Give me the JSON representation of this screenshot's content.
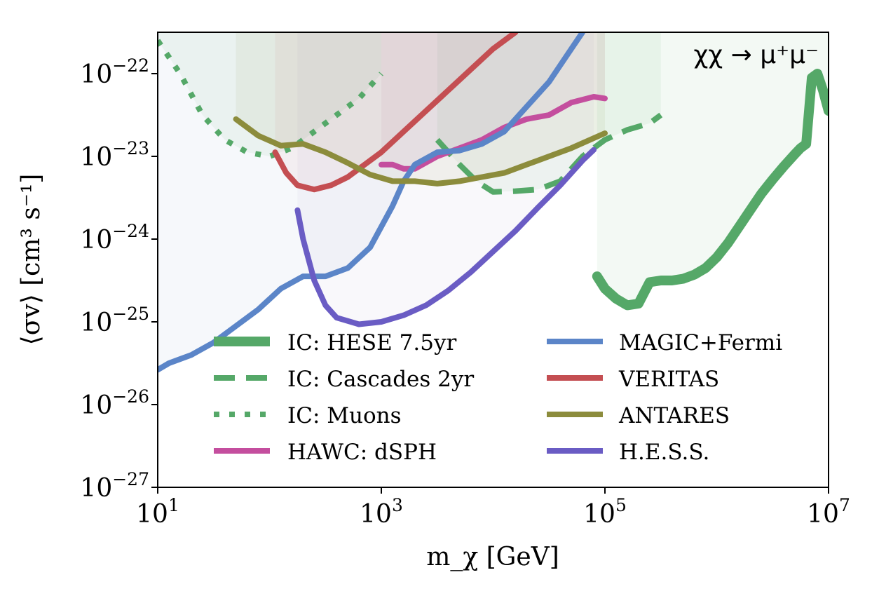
{
  "chart_data": {
    "type": "line",
    "title": "",
    "annotation": "χχ → μ⁺μ⁻",
    "xlabel": "m_χ [GeV]",
    "ylabel": "⟨σv⟩ [cm³ s⁻¹]",
    "xscale": "log",
    "yscale": "log",
    "xlim_log10": [
      1,
      7
    ],
    "ylim_log10": [
      -27,
      -21.5
    ],
    "x_ticks": [
      {
        "exp": 1,
        "base": "10",
        "sup": "1"
      },
      {
        "exp": 3,
        "base": "10",
        "sup": "3"
      },
      {
        "exp": 5,
        "base": "10",
        "sup": "5"
      },
      {
        "exp": 7,
        "base": "10",
        "sup": "7"
      }
    ],
    "y_ticks": [
      {
        "exp": -22,
        "base": "10",
        "sup": "−22"
      },
      {
        "exp": -23,
        "base": "10",
        "sup": "−23"
      },
      {
        "exp": -24,
        "base": "10",
        "sup": "−24"
      },
      {
        "exp": -25,
        "base": "10",
        "sup": "−25"
      },
      {
        "exp": -26,
        "base": "10",
        "sup": "−26"
      },
      {
        "exp": -27,
        "base": "10",
        "sup": "−27"
      }
    ],
    "legend_position": "lower-center",
    "series": [
      {
        "name": "IC: HESE 7.5yr",
        "color": "#55a868",
        "width": 14,
        "dash": "solid",
        "shade": true,
        "shade_color": "#55a868",
        "shade_opacity": 0.07,
        "points": [
          [
            4.93,
            -24.45
          ],
          [
            5.0,
            -24.6
          ],
          [
            5.1,
            -24.72
          ],
          [
            5.2,
            -24.8
          ],
          [
            5.3,
            -24.78
          ],
          [
            5.35,
            -24.65
          ],
          [
            5.4,
            -24.52
          ],
          [
            5.5,
            -24.5
          ],
          [
            5.6,
            -24.5
          ],
          [
            5.7,
            -24.48
          ],
          [
            5.8,
            -24.43
          ],
          [
            5.9,
            -24.35
          ],
          [
            6.0,
            -24.22
          ],
          [
            6.1,
            -24.05
          ],
          [
            6.2,
            -23.85
          ],
          [
            6.3,
            -23.65
          ],
          [
            6.4,
            -23.45
          ],
          [
            6.5,
            -23.28
          ],
          [
            6.6,
            -23.12
          ],
          [
            6.7,
            -22.97
          ],
          [
            6.75,
            -22.9
          ],
          [
            6.8,
            -22.85
          ],
          [
            6.85,
            -22.05
          ],
          [
            6.9,
            -22.0
          ],
          [
            6.95,
            -22.2
          ],
          [
            7.0,
            -22.45
          ]
        ]
      },
      {
        "name": "IC: Cascades 2yr",
        "color": "#55a868",
        "width": 8,
        "dash": "dashed",
        "shade": true,
        "shade_color": "#55a868",
        "shade_opacity": 0.07,
        "points": [
          [
            3.5,
            -22.8
          ],
          [
            3.7,
            -23.1
          ],
          [
            3.85,
            -23.3
          ],
          [
            4.0,
            -23.43
          ],
          [
            4.2,
            -23.42
          ],
          [
            4.4,
            -23.4
          ],
          [
            4.6,
            -23.3
          ],
          [
            4.8,
            -23.0
          ],
          [
            5.0,
            -22.8
          ],
          [
            5.2,
            -22.68
          ],
          [
            5.4,
            -22.6
          ],
          [
            5.5,
            -22.5
          ]
        ]
      },
      {
        "name": "IC: Muons",
        "color": "#55a868",
        "width": 8,
        "dash": "dotted",
        "shade": true,
        "shade_color": "#55a868",
        "shade_opacity": 0.07,
        "points": [
          [
            1.0,
            -21.6
          ],
          [
            1.2,
            -22.0
          ],
          [
            1.4,
            -22.5
          ],
          [
            1.6,
            -22.8
          ],
          [
            1.8,
            -22.95
          ],
          [
            2.0,
            -23.0
          ],
          [
            2.2,
            -22.9
          ],
          [
            2.4,
            -22.7
          ],
          [
            2.6,
            -22.5
          ],
          [
            2.8,
            -22.3
          ],
          [
            3.0,
            -22.0
          ]
        ]
      },
      {
        "name": "HAWC: dSPH",
        "color": "#c44e9e",
        "width": 8,
        "dash": "solid",
        "shade": true,
        "shade_color": "#c44e9e",
        "shade_opacity": 0.07,
        "points": [
          [
            3.0,
            -23.1
          ],
          [
            3.1,
            -23.1
          ],
          [
            3.2,
            -23.15
          ],
          [
            3.3,
            -23.15
          ],
          [
            3.5,
            -23.0
          ],
          [
            3.7,
            -22.9
          ],
          [
            3.9,
            -22.8
          ],
          [
            4.1,
            -22.65
          ],
          [
            4.3,
            -22.55
          ],
          [
            4.5,
            -22.5
          ],
          [
            4.7,
            -22.35
          ],
          [
            4.9,
            -22.28
          ],
          [
            5.0,
            -22.3
          ]
        ]
      },
      {
        "name": "MAGIC+Fermi",
        "color": "#5b85c8",
        "width": 8,
        "dash": "solid",
        "shade": true,
        "shade_color": "#4c72b0",
        "shade_opacity": 0.05,
        "points": [
          [
            1.0,
            -25.58
          ],
          [
            1.1,
            -25.5
          ],
          [
            1.3,
            -25.4
          ],
          [
            1.5,
            -25.25
          ],
          [
            1.7,
            -25.05
          ],
          [
            1.9,
            -24.85
          ],
          [
            2.1,
            -24.6
          ],
          [
            2.3,
            -24.45
          ],
          [
            2.5,
            -24.45
          ],
          [
            2.7,
            -24.35
          ],
          [
            2.9,
            -24.1
          ],
          [
            3.0,
            -23.85
          ],
          [
            3.1,
            -23.6
          ],
          [
            3.2,
            -23.3
          ],
          [
            3.3,
            -23.1
          ],
          [
            3.5,
            -22.95
          ],
          [
            3.7,
            -22.93
          ],
          [
            3.9,
            -22.85
          ],
          [
            4.1,
            -22.7
          ],
          [
            4.3,
            -22.4
          ],
          [
            4.5,
            -22.1
          ],
          [
            4.6,
            -21.9
          ],
          [
            4.7,
            -21.7
          ],
          [
            4.8,
            -21.5
          ]
        ]
      },
      {
        "name": "VERITAS",
        "color": "#c44e52",
        "width": 8,
        "dash": "solid",
        "shade": true,
        "shade_color": "#c44e52",
        "shade_opacity": 0.06,
        "points": [
          [
            2.05,
            -22.95
          ],
          [
            2.15,
            -23.2
          ],
          [
            2.25,
            -23.35
          ],
          [
            2.4,
            -23.4
          ],
          [
            2.55,
            -23.35
          ],
          [
            2.7,
            -23.25
          ],
          [
            2.85,
            -23.1
          ],
          [
            3.0,
            -22.95
          ],
          [
            3.2,
            -22.7
          ],
          [
            3.4,
            -22.45
          ],
          [
            3.6,
            -22.2
          ],
          [
            3.8,
            -21.95
          ],
          [
            4.0,
            -21.7
          ],
          [
            4.2,
            -21.5
          ]
        ]
      },
      {
        "name": "ANTARES",
        "color": "#8c8c3c",
        "width": 8,
        "dash": "solid",
        "shade": true,
        "shade_color": "#8c8c3c",
        "shade_opacity": 0.08,
        "points": [
          [
            1.7,
            -22.55
          ],
          [
            1.9,
            -22.75
          ],
          [
            2.1,
            -22.87
          ],
          [
            2.3,
            -22.85
          ],
          [
            2.5,
            -22.95
          ],
          [
            2.7,
            -23.08
          ],
          [
            2.9,
            -23.22
          ],
          [
            3.1,
            -23.3
          ],
          [
            3.3,
            -23.3
          ],
          [
            3.5,
            -23.33
          ],
          [
            3.7,
            -23.3
          ],
          [
            3.9,
            -23.25
          ],
          [
            4.1,
            -23.2
          ],
          [
            4.3,
            -23.1
          ],
          [
            4.5,
            -23.0
          ],
          [
            4.7,
            -22.9
          ],
          [
            4.9,
            -22.78
          ],
          [
            5.0,
            -22.72
          ]
        ]
      },
      {
        "name": "H.E.S.S.",
        "color": "#6a5cc4",
        "width": 8,
        "dash": "solid",
        "shade": true,
        "shade_color": "#8172b2",
        "shade_opacity": 0.05,
        "points": [
          [
            2.25,
            -23.65
          ],
          [
            2.3,
            -24.0
          ],
          [
            2.4,
            -24.5
          ],
          [
            2.5,
            -24.8
          ],
          [
            2.6,
            -24.95
          ],
          [
            2.8,
            -25.03
          ],
          [
            3.0,
            -25.0
          ],
          [
            3.2,
            -24.92
          ],
          [
            3.4,
            -24.8
          ],
          [
            3.6,
            -24.62
          ],
          [
            3.8,
            -24.4
          ],
          [
            4.0,
            -24.15
          ],
          [
            4.2,
            -23.9
          ],
          [
            4.4,
            -23.62
          ],
          [
            4.6,
            -23.35
          ],
          [
            4.8,
            -23.05
          ],
          [
            4.9,
            -22.92
          ]
        ]
      }
    ]
  }
}
